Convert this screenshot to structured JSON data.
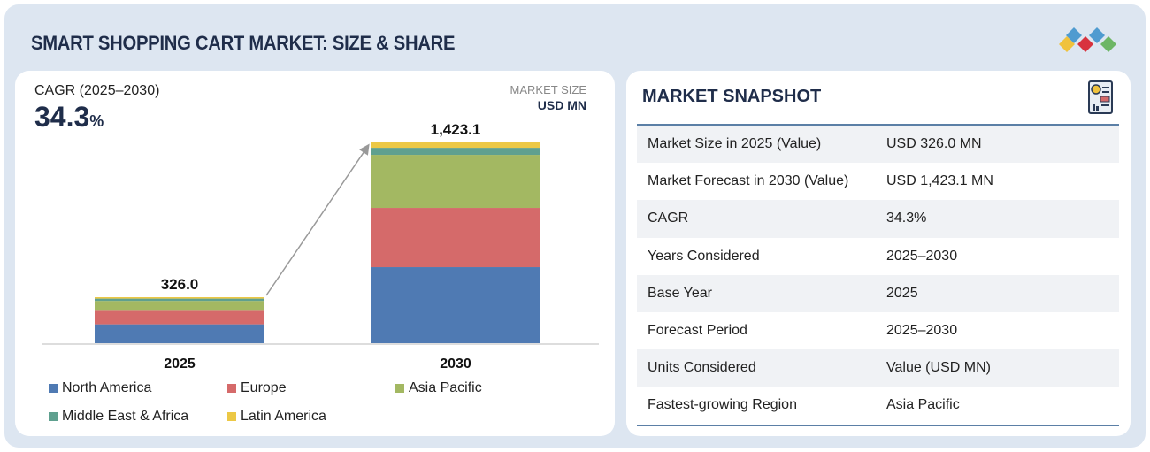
{
  "header": {
    "title": "SMART SHOPPING CART MARKET: SIZE & SHARE",
    "logo": "marketsandmarkets-diamond-logo"
  },
  "left": {
    "cagr_label": "CAGR (2025–2030)",
    "cagr_value": "34.3",
    "cagr_unit": "%",
    "market_size_label": "MARKET SIZE",
    "unit_label": "USD MN"
  },
  "chart_data": {
    "type": "bar",
    "stacked": true,
    "categories": [
      "2025",
      "2030"
    ],
    "totals": [
      "326.0",
      "1,423.1"
    ],
    "total_values": [
      326.0,
      1423.1
    ],
    "series": [
      {
        "name": "North America",
        "color": "#4f7ab3",
        "values": [
          134,
          539
        ]
      },
      {
        "name": "Europe",
        "color": "#d56a6a",
        "values": [
          96,
          420
        ]
      },
      {
        "name": "Asia Pacific",
        "color": "#a3b862",
        "values": [
          70,
          376
        ]
      },
      {
        "name": "Middle East & Africa",
        "color": "#5fa08f",
        "values": [
          16,
          50
        ]
      },
      {
        "name": "Latin America",
        "color": "#ecc845",
        "values": [
          10,
          38
        ]
      }
    ],
    "ylim": [
      0,
      1450
    ],
    "grid": false,
    "legend": "bottom",
    "annotation": "growth arrow from 2025 to 2030"
  },
  "snapshot": {
    "title": "MARKET SNAPSHOT",
    "icon": "report-document-icon",
    "rows": [
      {
        "k": "Market Size in 2025 (Value)",
        "v": "USD 326.0 MN"
      },
      {
        "k": "Market Forecast in 2030 (Value)",
        "v": "USD 1,423.1 MN"
      },
      {
        "k": "CAGR",
        "v": "34.3%"
      },
      {
        "k": "Years Considered",
        "v": "2025–2030"
      },
      {
        "k": "Base Year",
        "v": "2025"
      },
      {
        "k": "Forecast Period",
        "v": "2025–2030"
      },
      {
        "k": "Units Considered",
        "v": "Value (USD MN)"
      },
      {
        "k": "Fastest-growing Region",
        "v": "Asia Pacific"
      }
    ]
  }
}
